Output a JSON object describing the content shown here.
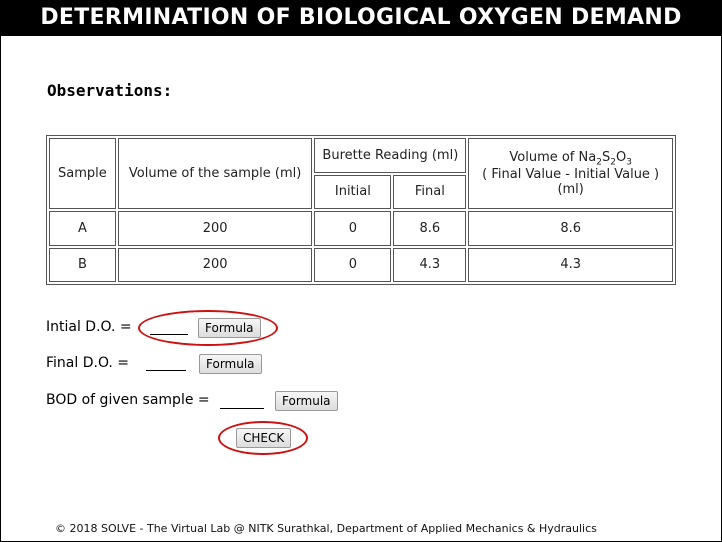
{
  "header": {
    "title": "DETERMINATION OF BIOLOGICAL OXYGEN DEMAND"
  },
  "observations": {
    "heading": "Observations:",
    "table": {
      "col_sample": "Sample",
      "col_volume": "Volume of the sample (ml)",
      "col_burette": "Burette Reading (ml)",
      "col_initial": "Initial",
      "col_final": "Final",
      "col_na_prefix": "Volume of Na",
      "col_na_sub1": "2",
      "col_na_s": "S",
      "col_na_sub2": "2",
      "col_na_o": "O",
      "col_na_sub3": "3",
      "col_na_line2": "( Final Value - Initial Value )",
      "col_na_line3": "(ml)",
      "rows": [
        {
          "sample": "A",
          "volume": "200",
          "initial": "0",
          "final": "8.6",
          "na_volume": "8.6"
        },
        {
          "sample": "B",
          "volume": "200",
          "initial": "0",
          "final": "4.3",
          "na_volume": "4.3"
        }
      ]
    }
  },
  "calc": {
    "initial_do_label": "Intial D.O. =",
    "final_do_label": "Final  D.O. =",
    "bod_label": "BOD of given sample =",
    "formula_button": "Formula",
    "check_button": "CHECK"
  },
  "annotation_color": "#cc1111",
  "footer": "© 2018 SOLVE - The Virtual Lab @ NITK Surathkal, Department of Applied Mechanics & Hydraulics"
}
